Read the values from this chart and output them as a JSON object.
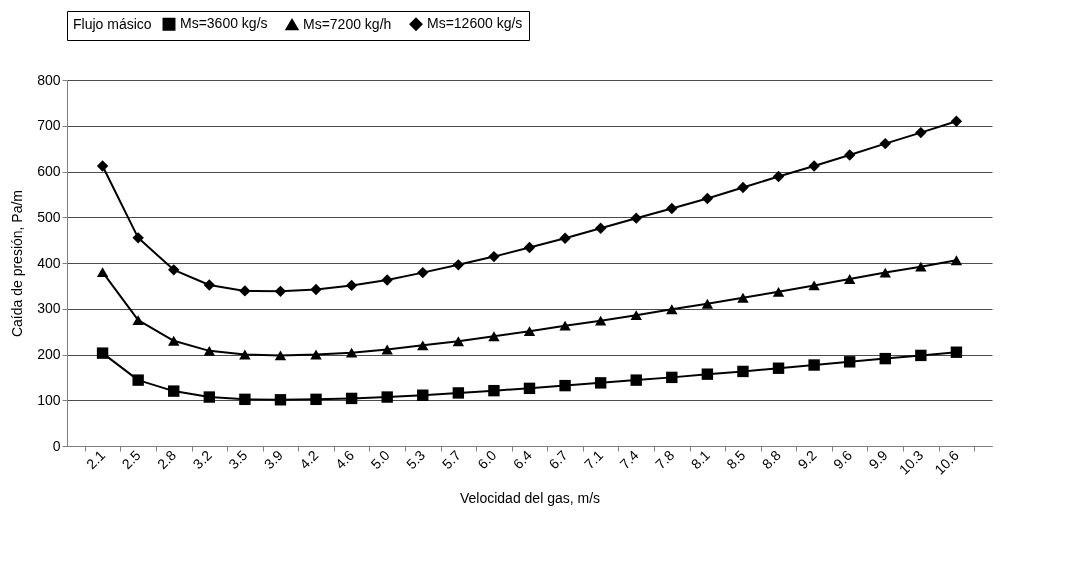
{
  "chart_data": {
    "type": "line",
    "xlabel": "Velocidad del gas, m/s",
    "ylabel": "Caída de presión,  Pa/m",
    "legend_title": "Flujo másico",
    "legend": "top",
    "grid": "y",
    "categories": [
      "2.1",
      "2.5",
      "2.8",
      "3.2",
      "3.5",
      "3.9",
      "4.2",
      "4.6",
      "5.0",
      "5.3",
      "5.7",
      "6.0",
      "6.4",
      "6.7",
      "7.1",
      "7.4",
      "7.8",
      "8.1",
      "8.5",
      "8.8",
      "9.2",
      "9.6",
      "9.9",
      "10.3",
      "10.6"
    ],
    "ylim": [
      0,
      800
    ],
    "yticks": [
      0,
      100,
      200,
      300,
      400,
      500,
      600,
      700,
      800
    ],
    "series": [
      {
        "name": "Ms=3600 kg/s",
        "color": "#000000",
        "marker": "square",
        "values": [
          203,
          144,
          120,
          107,
          102,
          101,
          102,
          104,
          107,
          111,
          116,
          121,
          126,
          132,
          138,
          144,
          150,
          157,
          163,
          170,
          177,
          184,
          191,
          198,
          205
        ]
      },
      {
        "name": "Ms=7200 kg/h",
        "color": "#000000",
        "marker": "triangle",
        "values": [
          380,
          275,
          230,
          208,
          200,
          198,
          200,
          204,
          211,
          220,
          229,
          240,
          251,
          263,
          274,
          286,
          299,
          311,
          324,
          337,
          351,
          365,
          379,
          392,
          406
        ]
      },
      {
        "name": "Ms=12600 kg/s",
        "color": "#000000",
        "marker": "diamond",
        "values": [
          612,
          455,
          385,
          352,
          339,
          338,
          342,
          351,
          363,
          379,
          396,
          414,
          434,
          454,
          476,
          498,
          519,
          541,
          565,
          589,
          612,
          636,
          661,
          685,
          710
        ]
      }
    ]
  }
}
